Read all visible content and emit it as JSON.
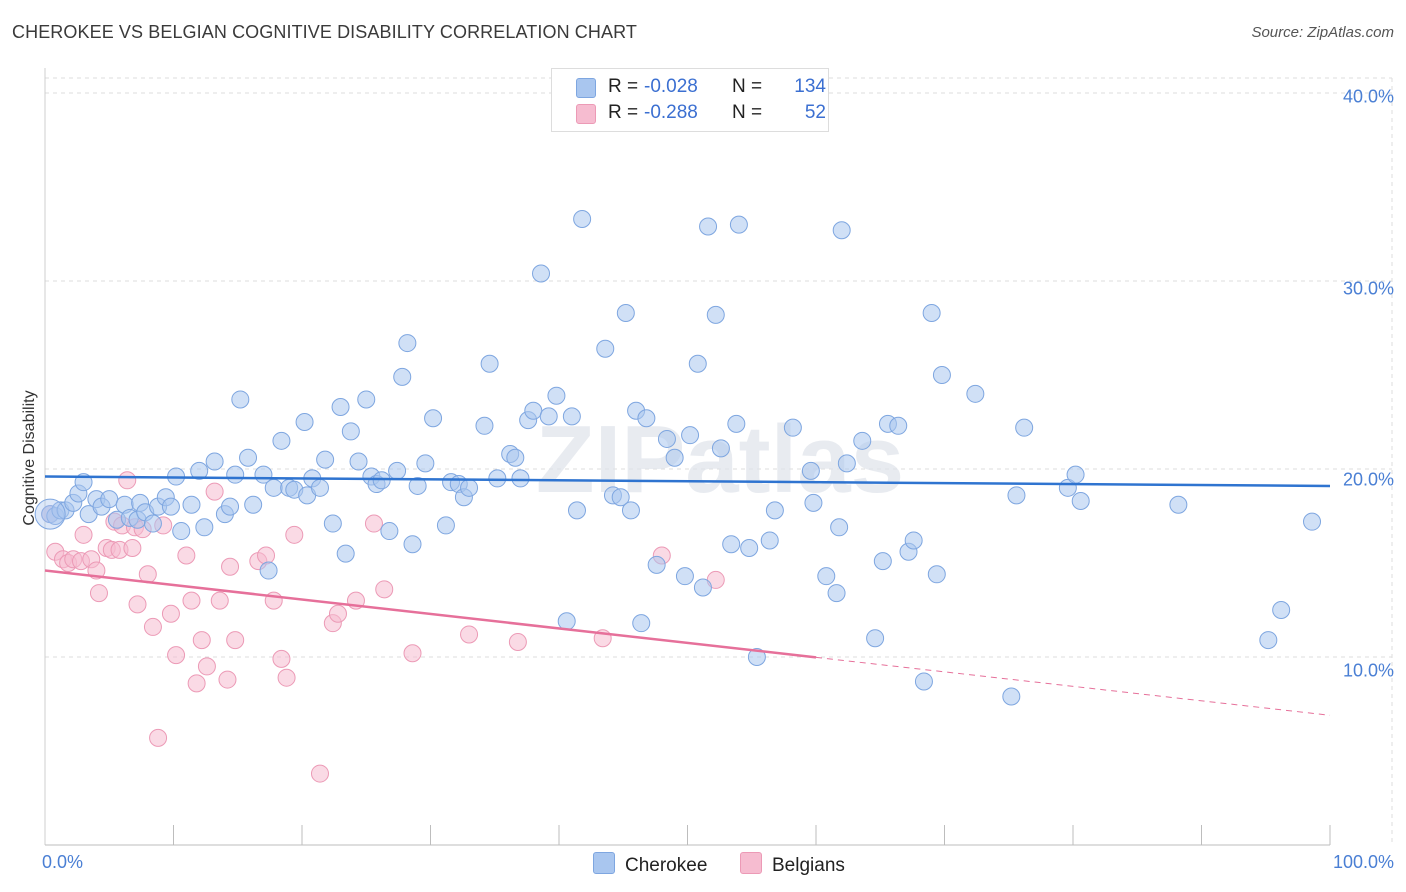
{
  "header": {
    "title": "CHEROKEE VS BELGIAN COGNITIVE DISABILITY CORRELATION CHART",
    "source": "Source: ZipAtlas.com"
  },
  "legend": {
    "rows": [
      {
        "r_label": "R =",
        "r_value": "-0.028",
        "n_label": "N =",
        "n_value": "134"
      },
      {
        "r_label": "R =",
        "r_value": "-0.288",
        "n_label": "N =",
        "n_value": "52"
      }
    ]
  },
  "colors": {
    "cherokee_fill": "#a9c6ef",
    "cherokee_stroke": "#7ea6e0",
    "cherokee_line": "#2f74d0",
    "belgians_fill": "#f6bcd0",
    "belgians_stroke": "#ec9ab6",
    "belgians_line": "#e6709a",
    "tick_text": "#4a7fd4",
    "grid": "#dddddd"
  },
  "chart_data": {
    "type": "scatter",
    "title": "CHEROKEE VS BELGIAN COGNITIVE DISABILITY CORRELATION CHART",
    "xlabel": "",
    "ylabel": "Cognitive Disability",
    "xlim": [
      0,
      100
    ],
    "ylim": [
      0,
      40.8
    ],
    "x_tick_labels": [
      "0.0%",
      "100.0%"
    ],
    "y_ticks": [
      10,
      20,
      30,
      40
    ],
    "y_tick_labels": [
      "10.0%",
      "20.0%",
      "30.0%",
      "40.0%"
    ],
    "watermark": "ZIPatlas",
    "series": [
      {
        "name": "Cherokee",
        "R": -0.028,
        "N": 134,
        "trend": {
          "x0": 0,
          "y0": 19.6,
          "x1": 100,
          "y1": 19.1,
          "dashed_from": null
        },
        "points": [
          [
            0.4,
            17.6
          ],
          [
            0.8,
            17.5
          ],
          [
            1.2,
            17.8
          ],
          [
            1.6,
            17.8
          ],
          [
            2.2,
            18.2
          ],
          [
            2.6,
            18.7
          ],
          [
            3.0,
            19.3
          ],
          [
            3.4,
            17.6
          ],
          [
            4.0,
            18.4
          ],
          [
            4.4,
            18.0
          ],
          [
            5.0,
            18.4
          ],
          [
            5.6,
            17.3
          ],
          [
            6.2,
            18.1
          ],
          [
            6.6,
            17.4
          ],
          [
            7.2,
            17.3
          ],
          [
            7.4,
            18.2
          ],
          [
            7.8,
            17.7
          ],
          [
            8.4,
            17.1
          ],
          [
            8.8,
            18.0
          ],
          [
            9.4,
            18.5
          ],
          [
            9.8,
            18.0
          ],
          [
            10.2,
            19.6
          ],
          [
            10.6,
            16.7
          ],
          [
            11.4,
            18.1
          ],
          [
            12.0,
            19.9
          ],
          [
            12.4,
            16.9
          ],
          [
            13.2,
            20.4
          ],
          [
            14.0,
            17.6
          ],
          [
            14.4,
            18.0
          ],
          [
            14.8,
            19.7
          ],
          [
            15.2,
            23.7
          ],
          [
            15.8,
            20.6
          ],
          [
            16.2,
            18.1
          ],
          [
            17.0,
            19.7
          ],
          [
            17.4,
            14.6
          ],
          [
            17.8,
            19.0
          ],
          [
            18.4,
            21.5
          ],
          [
            19.0,
            19.0
          ],
          [
            19.4,
            18.9
          ],
          [
            20.2,
            22.5
          ],
          [
            20.4,
            18.6
          ],
          [
            20.8,
            19.5
          ],
          [
            21.4,
            19.0
          ],
          [
            21.8,
            20.5
          ],
          [
            22.4,
            17.1
          ],
          [
            23.0,
            23.3
          ],
          [
            23.4,
            15.5
          ],
          [
            23.8,
            22.0
          ],
          [
            24.4,
            20.4
          ],
          [
            25.0,
            23.7
          ],
          [
            25.4,
            19.6
          ],
          [
            25.8,
            19.2
          ],
          [
            26.2,
            19.4
          ],
          [
            26.8,
            16.7
          ],
          [
            27.4,
            19.9
          ],
          [
            27.8,
            24.9
          ],
          [
            28.2,
            26.7
          ],
          [
            28.6,
            16.0
          ],
          [
            29.0,
            19.1
          ],
          [
            29.6,
            20.3
          ],
          [
            30.2,
            22.7
          ],
          [
            31.2,
            17.0
          ],
          [
            31.6,
            19.3
          ],
          [
            32.2,
            19.2
          ],
          [
            32.6,
            18.5
          ],
          [
            33.0,
            19.0
          ],
          [
            34.2,
            22.3
          ],
          [
            34.6,
            25.6
          ],
          [
            35.2,
            19.5
          ],
          [
            36.2,
            20.8
          ],
          [
            36.6,
            20.6
          ],
          [
            37.0,
            19.5
          ],
          [
            37.6,
            22.6
          ],
          [
            38.0,
            23.1
          ],
          [
            38.6,
            30.4
          ],
          [
            39.2,
            22.8
          ],
          [
            39.8,
            23.9
          ],
          [
            40.6,
            11.9
          ],
          [
            41.0,
            22.8
          ],
          [
            41.4,
            17.8
          ],
          [
            41.8,
            33.3
          ],
          [
            43.6,
            26.4
          ],
          [
            44.2,
            18.6
          ],
          [
            44.8,
            18.5
          ],
          [
            45.2,
            28.3
          ],
          [
            45.6,
            17.8
          ],
          [
            46.0,
            23.1
          ],
          [
            46.4,
            11.8
          ],
          [
            46.8,
            22.7
          ],
          [
            47.6,
            14.9
          ],
          [
            48.4,
            21.6
          ],
          [
            49.0,
            20.6
          ],
          [
            49.8,
            14.3
          ],
          [
            50.2,
            21.8
          ],
          [
            50.8,
            25.6
          ],
          [
            51.2,
            13.7
          ],
          [
            51.6,
            32.9
          ],
          [
            52.2,
            28.2
          ],
          [
            52.6,
            21.1
          ],
          [
            53.4,
            16.0
          ],
          [
            53.8,
            22.4
          ],
          [
            54.0,
            33.0
          ],
          [
            54.8,
            15.8
          ],
          [
            55.4,
            10.0
          ],
          [
            56.4,
            16.2
          ],
          [
            56.8,
            17.8
          ],
          [
            58.2,
            22.2
          ],
          [
            59.6,
            19.9
          ],
          [
            59.8,
            18.2
          ],
          [
            60.8,
            14.3
          ],
          [
            61.6,
            13.4
          ],
          [
            61.8,
            16.9
          ],
          [
            62.0,
            32.7
          ],
          [
            62.4,
            20.3
          ],
          [
            63.6,
            21.5
          ],
          [
            64.6,
            11.0
          ],
          [
            65.2,
            15.1
          ],
          [
            65.6,
            22.4
          ],
          [
            66.4,
            22.3
          ],
          [
            67.2,
            15.6
          ],
          [
            67.6,
            16.2
          ],
          [
            68.4,
            8.7
          ],
          [
            69.0,
            28.3
          ],
          [
            69.4,
            14.4
          ],
          [
            69.8,
            25.0
          ],
          [
            72.4,
            24.0
          ],
          [
            75.2,
            7.9
          ],
          [
            75.6,
            18.6
          ],
          [
            76.2,
            22.2
          ],
          [
            79.6,
            19.0
          ],
          [
            80.2,
            19.7
          ],
          [
            80.6,
            18.3
          ],
          [
            88.2,
            18.1
          ],
          [
            95.2,
            10.9
          ],
          [
            96.2,
            12.5
          ],
          [
            98.6,
            17.2
          ]
        ]
      },
      {
        "name": "Belgians",
        "R": -0.288,
        "N": 52,
        "trend": {
          "x0": 0,
          "y0": 14.6,
          "x1": 100,
          "y1": 6.9,
          "dashed_from": 60
        },
        "points": [
          [
            0.4,
            17.6
          ],
          [
            0.8,
            15.6
          ],
          [
            1.4,
            15.2
          ],
          [
            1.8,
            15.0
          ],
          [
            2.2,
            15.2
          ],
          [
            2.8,
            15.1
          ],
          [
            3.0,
            16.5
          ],
          [
            3.6,
            15.2
          ],
          [
            4.0,
            14.6
          ],
          [
            4.2,
            13.4
          ],
          [
            4.8,
            15.8
          ],
          [
            5.2,
            15.7
          ],
          [
            5.4,
            17.2
          ],
          [
            5.8,
            15.7
          ],
          [
            6.0,
            17.0
          ],
          [
            6.4,
            19.4
          ],
          [
            6.8,
            15.8
          ],
          [
            7.0,
            16.9
          ],
          [
            7.2,
            12.8
          ],
          [
            7.6,
            16.8
          ],
          [
            8.0,
            14.4
          ],
          [
            8.4,
            11.6
          ],
          [
            8.8,
            5.7
          ],
          [
            9.2,
            17.0
          ],
          [
            9.8,
            12.3
          ],
          [
            10.2,
            10.1
          ],
          [
            11.0,
            15.4
          ],
          [
            11.4,
            13.0
          ],
          [
            11.8,
            8.6
          ],
          [
            12.2,
            10.9
          ],
          [
            12.6,
            9.5
          ],
          [
            13.2,
            18.8
          ],
          [
            13.6,
            13.0
          ],
          [
            14.2,
            8.8
          ],
          [
            14.4,
            14.8
          ],
          [
            14.8,
            10.9
          ],
          [
            16.6,
            15.1
          ],
          [
            17.2,
            15.4
          ],
          [
            17.8,
            13.0
          ],
          [
            18.4,
            9.9
          ],
          [
            18.8,
            8.9
          ],
          [
            19.4,
            16.5
          ],
          [
            21.4,
            3.8
          ],
          [
            22.4,
            11.8
          ],
          [
            22.8,
            12.3
          ],
          [
            24.2,
            13.0
          ],
          [
            25.6,
            17.1
          ],
          [
            26.4,
            13.6
          ],
          [
            28.6,
            10.2
          ],
          [
            33.0,
            11.2
          ],
          [
            36.8,
            10.8
          ],
          [
            43.4,
            11.0
          ],
          [
            48.0,
            15.4
          ],
          [
            52.2,
            14.1
          ]
        ]
      }
    ]
  },
  "bottom_legend": {
    "items": [
      {
        "label": "Cherokee"
      },
      {
        "label": "Belgians"
      }
    ]
  }
}
